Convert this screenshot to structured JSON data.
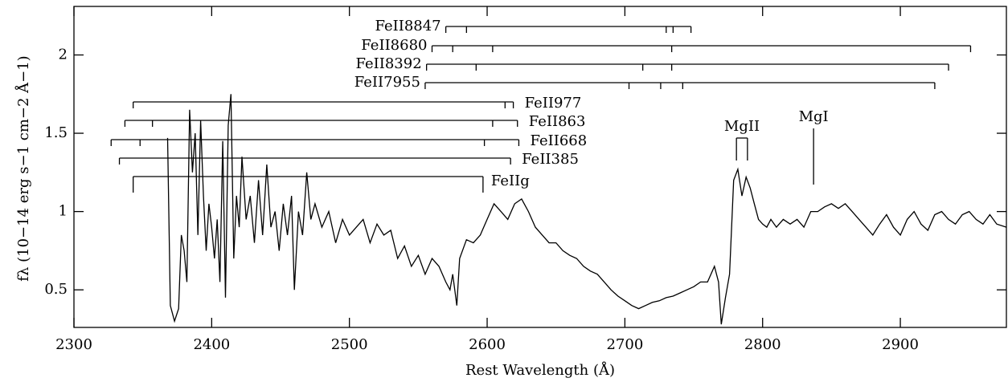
{
  "chart_data": {
    "type": "line",
    "xlabel": "Rest Wavelength (Å)",
    "ylabel": "fλ (10−14 erg s−1 cm−2 Å−1)",
    "xlim": [
      2300,
      2977
    ],
    "ylim": [
      0.26,
      2.31
    ],
    "xticks": [
      2300,
      2400,
      2500,
      2600,
      2700,
      2800,
      2900
    ],
    "yticks": [
      0.5,
      1,
      1.5,
      2
    ],
    "color": "#000000",
    "x": [
      2368,
      2370,
      2373,
      2376,
      2378,
      2380,
      2382,
      2384,
      2386,
      2388,
      2390,
      2392,
      2394,
      2396,
      2398,
      2400,
      2402,
      2404,
      2406,
      2408,
      2410,
      2412,
      2414,
      2416,
      2418,
      2420,
      2422,
      2425,
      2428,
      2431,
      2434,
      2437,
      2440,
      2443,
      2446,
      2449,
      2452,
      2455,
      2458,
      2460,
      2463,
      2466,
      2469,
      2472,
      2475,
      2480,
      2485,
      2490,
      2495,
      2500,
      2505,
      2510,
      2515,
      2520,
      2525,
      2530,
      2535,
      2540,
      2545,
      2550,
      2555,
      2560,
      2565,
      2570,
      2573,
      2575,
      2578,
      2580,
      2585,
      2590,
      2595,
      2600,
      2605,
      2610,
      2615,
      2620,
      2625,
      2630,
      2635,
      2640,
      2645,
      2650,
      2655,
      2660,
      2665,
      2670,
      2675,
      2680,
      2685,
      2690,
      2695,
      2700,
      2705,
      2710,
      2715,
      2720,
      2725,
      2730,
      2735,
      2740,
      2745,
      2750,
      2755,
      2760,
      2765,
      2768,
      2770,
      2773,
      2776,
      2779,
      2782,
      2785,
      2788,
      2791,
      2794,
      2797,
      2800,
      2803,
      2806,
      2810,
      2815,
      2820,
      2825,
      2830,
      2835,
      2840,
      2845,
      2850,
      2855,
      2860,
      2865,
      2870,
      2875,
      2880,
      2885,
      2890,
      2895,
      2900,
      2905,
      2910,
      2915,
      2920,
      2925,
      2930,
      2935,
      2940,
      2945,
      2950,
      2955,
      2960,
      2965,
      2970,
      2977
    ],
    "values": [
      1.47,
      0.4,
      0.3,
      0.38,
      0.85,
      0.75,
      0.55,
      1.65,
      1.25,
      1.5,
      0.85,
      1.58,
      1.1,
      0.75,
      1.05,
      0.9,
      0.7,
      0.95,
      0.55,
      1.45,
      0.45,
      1.55,
      1.75,
      0.7,
      1.1,
      0.9,
      1.35,
      0.95,
      1.1,
      0.8,
      1.2,
      0.85,
      1.3,
      0.9,
      1.0,
      0.75,
      1.05,
      0.85,
      1.1,
      0.5,
      1.0,
      0.85,
      1.25,
      0.95,
      1.05,
      0.9,
      1.0,
      0.8,
      0.95,
      0.85,
      0.9,
      0.95,
      0.8,
      0.92,
      0.85,
      0.88,
      0.7,
      0.78,
      0.65,
      0.72,
      0.6,
      0.7,
      0.65,
      0.55,
      0.5,
      0.6,
      0.4,
      0.7,
      0.82,
      0.8,
      0.85,
      0.95,
      1.05,
      1.0,
      0.95,
      1.05,
      1.08,
      1.0,
      0.9,
      0.85,
      0.8,
      0.8,
      0.75,
      0.72,
      0.7,
      0.65,
      0.62,
      0.6,
      0.55,
      0.5,
      0.46,
      0.43,
      0.4,
      0.38,
      0.4,
      0.42,
      0.43,
      0.45,
      0.46,
      0.48,
      0.5,
      0.52,
      0.55,
      0.55,
      0.65,
      0.55,
      0.28,
      0.45,
      0.6,
      1.2,
      1.27,
      1.1,
      1.22,
      1.15,
      1.05,
      0.95,
      0.92,
      0.9,
      0.95,
      0.9,
      0.95,
      0.92,
      0.95,
      0.9,
      1.0,
      1.0,
      1.03,
      1.05,
      1.02,
      1.05,
      1.0,
      0.95,
      0.9,
      0.85,
      0.92,
      0.98,
      0.9,
      0.85,
      0.95,
      1.0,
      0.92,
      0.88,
      0.98,
      1.0,
      0.95,
      0.92,
      0.98,
      1.0,
      0.95,
      0.92,
      0.98,
      0.92,
      0.9
    ],
    "annotations": [
      {
        "label": "FeII8847",
        "lines": [
          2570,
          2585,
          2730,
          2735,
          2748
        ]
      },
      {
        "label": "FeII8680",
        "lines": [
          2560,
          2575,
          2604,
          2734,
          2951
        ]
      },
      {
        "label": "FeII8392",
        "lines": [
          2556,
          2592,
          2713,
          2734,
          2935
        ]
      },
      {
        "label": "FeII7955",
        "lines": [
          2555,
          2703,
          2726,
          2742,
          2925
        ]
      },
      {
        "label": "FeII977",
        "lines": [
          2343,
          2613,
          2619
        ]
      },
      {
        "label": "FeII863",
        "lines": [
          2337,
          2357,
          2604,
          2622
        ]
      },
      {
        "label": "FeII668",
        "lines": [
          2327,
          2348,
          2598,
          2623
        ]
      },
      {
        "label": "FeII385",
        "lines": [
          2333,
          2617
        ]
      },
      {
        "label": "FeIIg",
        "lines": [
          2343,
          2597
        ]
      },
      {
        "label": "MgII",
        "lines": [
          2781,
          2789
        ]
      },
      {
        "label": "MgI",
        "lines": [
          2837
        ]
      }
    ]
  }
}
